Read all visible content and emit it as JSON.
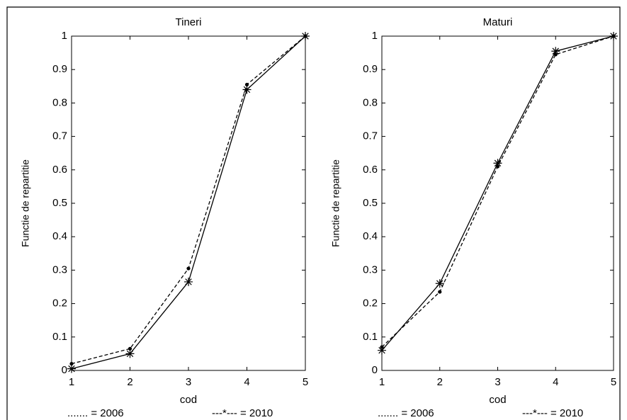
{
  "chart_data": [
    {
      "type": "line",
      "title": "Tineri",
      "xlabel": "cod",
      "ylabel": "Functie de repartitie",
      "x": [
        1,
        2,
        3,
        4,
        5
      ],
      "series": [
        {
          "name": "....... = 2006",
          "color": "#000000",
          "linestyle": "dashed",
          "marker": "dot",
          "values": [
            0.02,
            0.065,
            0.305,
            0.855,
            1
          ]
        },
        {
          "name": "---*--- = 2010",
          "color": "#000000",
          "linestyle": "solid",
          "marker": "star",
          "values": [
            0.005,
            0.05,
            0.265,
            0.84,
            1
          ]
        }
      ],
      "xlim": [
        1,
        5
      ],
      "ylim": [
        0,
        1
      ],
      "xticks": [
        1,
        2,
        3,
        4,
        5
      ],
      "yticks": [
        0,
        0.1,
        0.2,
        0.3,
        0.4,
        0.5,
        0.6,
        0.7,
        0.8,
        0.9,
        1
      ]
    },
    {
      "type": "line",
      "title": "Maturi",
      "xlabel": "cod",
      "ylabel": "Functie de repartitie",
      "x": [
        1,
        2,
        3,
        4,
        5
      ],
      "series": [
        {
          "name": "....... = 2006",
          "color": "#000000",
          "linestyle": "dashed",
          "marker": "dot",
          "values": [
            0.07,
            0.235,
            0.61,
            0.945,
            1
          ]
        },
        {
          "name": "---*--- = 2010",
          "color": "#000000",
          "linestyle": "solid",
          "marker": "star",
          "values": [
            0.06,
            0.26,
            0.62,
            0.955,
            1
          ]
        }
      ],
      "xlim": [
        1,
        5
      ],
      "ylim": [
        0,
        1
      ],
      "xticks": [
        1,
        2,
        3,
        4,
        5
      ],
      "yticks": [
        0,
        0.1,
        0.2,
        0.3,
        0.4,
        0.5,
        0.6,
        0.7,
        0.8,
        0.9,
        1
      ]
    }
  ]
}
